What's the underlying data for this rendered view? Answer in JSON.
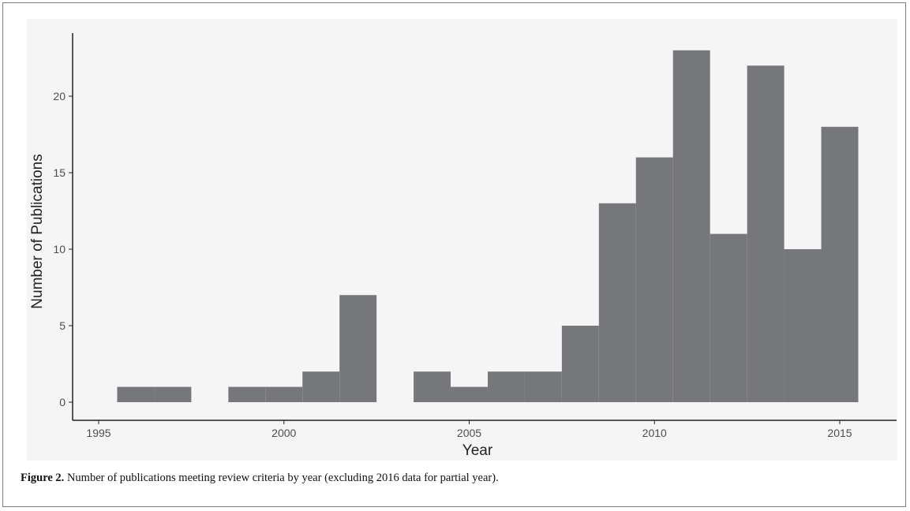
{
  "figure": {
    "label": "Figure 2.",
    "caption": "Number of publications meeting review criteria by year (excluding 2016 data for partial year)."
  },
  "colors": {
    "bar": "#76777b",
    "axis": "#222222",
    "panel": "#f5f5f5"
  },
  "chart_data": {
    "type": "bar",
    "title": "",
    "xlabel": "Year",
    "ylabel": "Number of Publications",
    "x": [
      1996,
      1997,
      1998,
      1999,
      2000,
      2001,
      2002,
      2003,
      2004,
      2005,
      2006,
      2007,
      2008,
      2009,
      2010,
      2011,
      2012,
      2013,
      2014,
      2015
    ],
    "values": [
      1,
      1,
      0,
      1,
      1,
      2,
      7,
      0,
      2,
      1,
      2,
      2,
      5,
      13,
      16,
      23,
      11,
      22,
      10,
      18
    ],
    "xlim": [
      1994.6,
      1996.4
    ],
    "xticks": [
      1995,
      2000,
      2005,
      2010,
      2015
    ],
    "xtick_labels": [
      "1995",
      "2000",
      "2005",
      "2010",
      "2015"
    ],
    "yticks": [
      0,
      5,
      10,
      15,
      20
    ],
    "ytick_labels": [
      "0",
      "5",
      "10",
      "15",
      "20"
    ],
    "ylim": [
      0,
      24
    ],
    "grid": false,
    "legend": "none"
  }
}
